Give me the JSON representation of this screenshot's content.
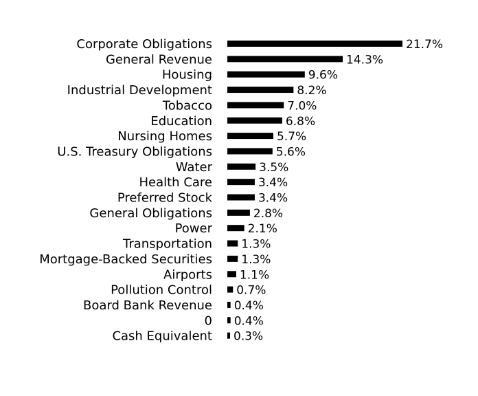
{
  "chart_data": {
    "type": "bar",
    "orientation": "horizontal",
    "bar_color": "#000000",
    "grid": false,
    "categories": [
      "Corporate Obligations",
      "General Revenue",
      "Housing",
      "Industrial Development",
      "Tobacco",
      "Education",
      "Nursing Homes",
      "U.S. Treasury Obligations",
      "Water",
      "Health Care",
      "Preferred Stock",
      "General Obligations",
      "Power",
      "Transportation",
      "Mortgage-Backed Securities",
      "Airports",
      "Pollution Control",
      "Board Bank Revenue",
      "0",
      "Cash Equivalent"
    ],
    "values": [
      21.7,
      14.3,
      9.6,
      8.2,
      7.0,
      6.8,
      5.7,
      5.6,
      3.5,
      3.4,
      3.4,
      2.8,
      2.1,
      1.3,
      1.3,
      1.1,
      0.7,
      0.4,
      0.4,
      0.3
    ],
    "value_labels": [
      "21.7%",
      "14.3%",
      "9.6%",
      "8.2%",
      "7.0%",
      "6.8%",
      "5.7%",
      "5.6%",
      "3.5%",
      "3.4%",
      "3.4%",
      "2.8%",
      "2.1%",
      "1.3%",
      "1.3%",
      "1.1%",
      "0.7%",
      "0.4%",
      "0.4%",
      "0.3%"
    ]
  }
}
